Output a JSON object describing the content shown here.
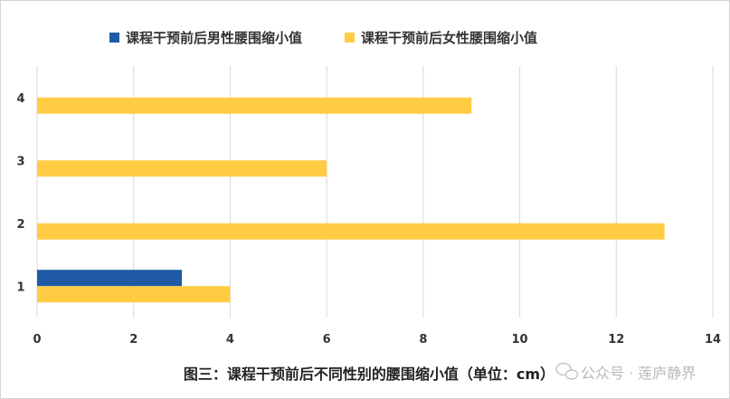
{
  "chart_data": {
    "type": "bar",
    "orientation": "horizontal",
    "categories": [
      "1",
      "2",
      "3",
      "4"
    ],
    "series": [
      {
        "name": "课程干预前后男性腰围缩小值",
        "values": [
          3,
          null,
          null,
          null
        ],
        "color": "#1f5aa6"
      },
      {
        "name": "课程干预前后女性腰围缩小值",
        "values": [
          4,
          13,
          6,
          9
        ],
        "color": "#ffcc44"
      }
    ],
    "xlim": [
      0,
      14
    ],
    "xticks": [
      0,
      2,
      4,
      6,
      8,
      10,
      12,
      14
    ],
    "grid": true,
    "legend_position": "top",
    "caption": "图三：课程干预前后不同性别的腰围缩小值（单位：cm）"
  },
  "watermark": {
    "text": "公众号 · 莲庐静界"
  }
}
